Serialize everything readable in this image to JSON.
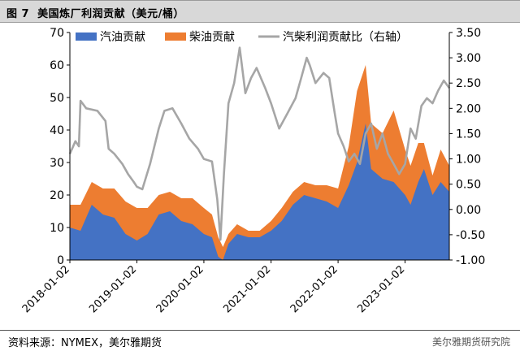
{
  "header": {
    "figure_no": "图 7",
    "title": "美国炼厂利润贡献（美元/桶）"
  },
  "footer": {
    "source": "资料来源：NYMEX，美尔雅期货",
    "watermark": "美尔雅期货研究院"
  },
  "colors": {
    "gasoline": "#4472c4",
    "diesel": "#ed7d31",
    "total": "#a6a6a6"
  },
  "chart_data": {
    "type": "area",
    "legend": [
      "汽油贡献",
      "柴油贡献",
      "汽柴利润贡献比（右轴）"
    ],
    "legend_position": "top",
    "left_axis": {
      "min": 0,
      "max": 70,
      "ticks": [
        "0",
        "10",
        "20",
        "30",
        "40",
        "50",
        "60",
        "70"
      ]
    },
    "right_axis": {
      "min": -1.0,
      "max": 3.5,
      "ticks": [
        "-1.00",
        "-0.50",
        "0.00",
        "0.50",
        "1.00",
        "1.50",
        "2.00",
        "2.50",
        "3.00",
        "3.50"
      ]
    },
    "x_ticks": [
      "2018-01-02",
      "2019-01-02",
      "2020-01-02",
      "2021-01-02",
      "2022-01-02",
      "2023-01-02"
    ],
    "x_range": [
      "2018-01-02",
      "2023-08-31"
    ],
    "series": [
      {
        "name": "汽油贡献",
        "axis": "left",
        "stack": true,
        "points": [
          [
            "2018-01-02",
            10
          ],
          [
            "2018-03-01",
            9
          ],
          [
            "2018-05-01",
            17
          ],
          [
            "2018-07-01",
            14
          ],
          [
            "2018-09-01",
            13
          ],
          [
            "2018-11-01",
            8
          ],
          [
            "2019-01-02",
            6
          ],
          [
            "2019-03-01",
            8
          ],
          [
            "2019-05-01",
            14
          ],
          [
            "2019-07-01",
            15
          ],
          [
            "2019-09-01",
            12
          ],
          [
            "2019-11-01",
            11
          ],
          [
            "2020-01-02",
            8
          ],
          [
            "2020-02-15",
            7
          ],
          [
            "2020-03-20",
            1
          ],
          [
            "2020-04-15",
            0
          ],
          [
            "2020-05-15",
            5
          ],
          [
            "2020-07-01",
            8
          ],
          [
            "2020-09-01",
            7
          ],
          [
            "2020-11-01",
            7
          ],
          [
            "2021-01-02",
            9
          ],
          [
            "2021-03-01",
            12
          ],
          [
            "2021-05-01",
            17
          ],
          [
            "2021-07-01",
            20
          ],
          [
            "2021-09-01",
            19
          ],
          [
            "2021-11-01",
            18
          ],
          [
            "2022-01-02",
            16
          ],
          [
            "2022-03-01",
            23
          ],
          [
            "2022-04-15",
            30
          ],
          [
            "2022-06-01",
            42
          ],
          [
            "2022-07-01",
            28
          ],
          [
            "2022-09-01",
            25
          ],
          [
            "2022-11-01",
            24
          ],
          [
            "2023-01-02",
            20
          ],
          [
            "2023-02-01",
            17
          ],
          [
            "2023-03-15",
            24
          ],
          [
            "2023-04-15",
            28
          ],
          [
            "2023-06-01",
            20
          ],
          [
            "2023-07-15",
            24
          ],
          [
            "2023-08-31",
            21
          ]
        ]
      },
      {
        "name": "柴油贡献",
        "axis": "left",
        "stack": true,
        "points": [
          [
            "2018-01-02",
            7
          ],
          [
            "2018-03-01",
            8
          ],
          [
            "2018-05-01",
            7
          ],
          [
            "2018-07-01",
            8
          ],
          [
            "2018-09-01",
            9
          ],
          [
            "2018-11-01",
            10
          ],
          [
            "2019-01-02",
            10
          ],
          [
            "2019-03-01",
            8
          ],
          [
            "2019-05-01",
            6
          ],
          [
            "2019-07-01",
            6
          ],
          [
            "2019-09-01",
            7
          ],
          [
            "2019-11-01",
            8
          ],
          [
            "2020-01-02",
            8
          ],
          [
            "2020-02-15",
            7
          ],
          [
            "2020-03-20",
            6
          ],
          [
            "2020-04-15",
            4
          ],
          [
            "2020-05-15",
            3
          ],
          [
            "2020-07-01",
            3
          ],
          [
            "2020-09-01",
            2
          ],
          [
            "2020-11-01",
            2
          ],
          [
            "2021-01-02",
            3
          ],
          [
            "2021-03-01",
            4
          ],
          [
            "2021-05-01",
            4
          ],
          [
            "2021-07-01",
            4
          ],
          [
            "2021-09-01",
            4
          ],
          [
            "2021-11-01",
            5
          ],
          [
            "2022-01-02",
            6
          ],
          [
            "2022-03-01",
            12
          ],
          [
            "2022-04-15",
            22
          ],
          [
            "2022-06-01",
            18
          ],
          [
            "2022-07-01",
            14
          ],
          [
            "2022-09-01",
            14
          ],
          [
            "2022-11-01",
            22
          ],
          [
            "2023-01-02",
            14
          ],
          [
            "2023-02-01",
            12
          ],
          [
            "2023-03-15",
            12
          ],
          [
            "2023-04-15",
            8
          ],
          [
            "2023-06-01",
            6
          ],
          [
            "2023-07-15",
            10
          ],
          [
            "2023-08-31",
            8
          ]
        ]
      },
      {
        "name": "汽柴利润贡献比（右轴）",
        "axis": "right",
        "stack": false,
        "points": [
          [
            "2018-01-02",
            1.1
          ],
          [
            "2018-02-01",
            1.35
          ],
          [
            "2018-02-20",
            1.25
          ],
          [
            "2018-03-01",
            2.15
          ],
          [
            "2018-04-01",
            2.0
          ],
          [
            "2018-06-01",
            1.95
          ],
          [
            "2018-07-15",
            1.75
          ],
          [
            "2018-08-01",
            1.2
          ],
          [
            "2018-09-01",
            1.1
          ],
          [
            "2018-10-15",
            0.9
          ],
          [
            "2018-11-15",
            0.7
          ],
          [
            "2018-12-15",
            0.55
          ],
          [
            "2019-01-02",
            0.45
          ],
          [
            "2019-02-01",
            0.4
          ],
          [
            "2019-03-15",
            0.9
          ],
          [
            "2019-05-01",
            1.6
          ],
          [
            "2019-06-01",
            1.95
          ],
          [
            "2019-07-15",
            2.0
          ],
          [
            "2019-09-01",
            1.7
          ],
          [
            "2019-10-15",
            1.4
          ],
          [
            "2019-12-01",
            1.2
          ],
          [
            "2020-01-02",
            1.0
          ],
          [
            "2020-02-15",
            0.95
          ],
          [
            "2020-03-15",
            0.2
          ],
          [
            "2020-04-01",
            -0.6
          ],
          [
            "2020-04-20",
            0.7
          ],
          [
            "2020-05-15",
            2.1
          ],
          [
            "2020-06-15",
            2.5
          ],
          [
            "2020-07-15",
            3.2
          ],
          [
            "2020-08-15",
            2.3
          ],
          [
            "2020-09-15",
            2.6
          ],
          [
            "2020-10-15",
            2.8
          ],
          [
            "2020-12-01",
            2.4
          ],
          [
            "2021-01-02",
            2.1
          ],
          [
            "2021-02-15",
            1.6
          ],
          [
            "2021-04-01",
            1.9
          ],
          [
            "2021-05-15",
            2.2
          ],
          [
            "2021-06-15",
            2.6
          ],
          [
            "2021-07-15",
            3.0
          ],
          [
            "2021-08-01",
            2.85
          ],
          [
            "2021-09-01",
            2.5
          ],
          [
            "2021-10-15",
            2.7
          ],
          [
            "2021-11-15",
            2.6
          ],
          [
            "2021-12-15",
            1.9
          ],
          [
            "2022-01-02",
            1.5
          ],
          [
            "2022-02-01",
            1.25
          ],
          [
            "2022-03-01",
            0.95
          ],
          [
            "2022-04-01",
            1.1
          ],
          [
            "2022-05-01",
            0.9
          ],
          [
            "2022-06-01",
            1.5
          ],
          [
            "2022-07-01",
            1.7
          ],
          [
            "2022-08-01",
            1.2
          ],
          [
            "2022-09-01",
            1.5
          ],
          [
            "2022-10-01",
            1.1
          ],
          [
            "2022-11-01",
            0.9
          ],
          [
            "2022-12-01",
            0.7
          ],
          [
            "2023-01-02",
            0.9
          ],
          [
            "2023-02-01",
            1.6
          ],
          [
            "2023-03-01",
            1.4
          ],
          [
            "2023-04-01",
            2.05
          ],
          [
            "2023-05-01",
            2.2
          ],
          [
            "2023-06-01",
            2.1
          ],
          [
            "2023-07-01",
            2.35
          ],
          [
            "2023-08-01",
            2.55
          ],
          [
            "2023-08-31",
            2.4
          ]
        ]
      }
    ]
  }
}
